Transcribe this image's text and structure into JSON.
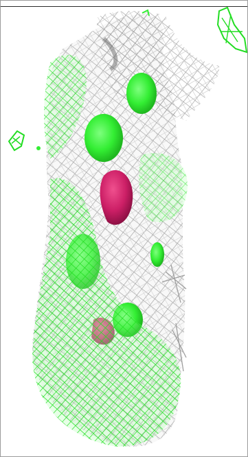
{
  "scene": {
    "background": "#ffffff",
    "frame_border": "#9a9a9a",
    "rule_color": "#2a2a2a"
  },
  "colors": {
    "wire_mesh": "#9e9e9e",
    "wire_mesh_light": "#c8c8c8",
    "green_density": "#33ee33",
    "green_dark": "#1fb81f",
    "magenta_core": "#cc1f66",
    "magenta_dark": "#8e1044"
  },
  "render_style": {
    "mesh": "wireframe",
    "green_region": "wireframe-and-solid",
    "core": "solid-shaded"
  }
}
